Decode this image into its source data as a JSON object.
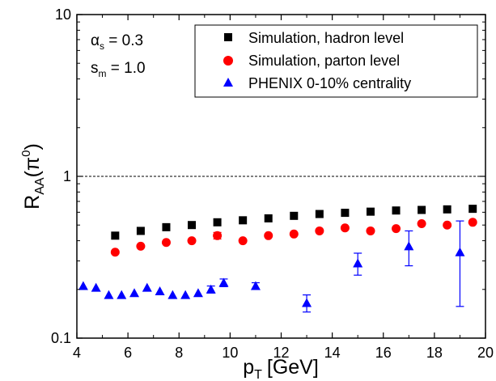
{
  "chart_data": {
    "type": "scatter",
    "xlabel": "p",
    "xlabel_sub": "T",
    "xlabel_unit": "[GeV]",
    "ylabel": "R",
    "ylabel_sub": "AA",
    "ylabel_arg_open": "(π",
    "ylabel_arg_sup": "0",
    "ylabel_arg_close": ")",
    "xlim": [
      4,
      20
    ],
    "ylim": [
      0.1,
      10
    ],
    "yscale": "log",
    "xticks": [
      "4",
      "6",
      "8",
      "10",
      "12",
      "14",
      "16",
      "18",
      "20"
    ],
    "yticks": [
      "0.1",
      "1",
      "10"
    ],
    "reference_line": {
      "y": 1,
      "style": "dashed"
    },
    "legend_position": "top-right",
    "params": [
      {
        "sym": "α",
        "sub": "s",
        "value": " = 0.3"
      },
      {
        "sym": "s",
        "sub": "m",
        "value": " = 1.0"
      }
    ],
    "series": [
      {
        "name": "Simulation, hadron level",
        "marker": "square",
        "color": "#000000",
        "points": [
          {
            "x": 5.5,
            "y": 0.43
          },
          {
            "x": 6.5,
            "y": 0.46
          },
          {
            "x": 7.5,
            "y": 0.485
          },
          {
            "x": 8.5,
            "y": 0.5
          },
          {
            "x": 9.5,
            "y": 0.52
          },
          {
            "x": 10.5,
            "y": 0.535
          },
          {
            "x": 11.5,
            "y": 0.55
          },
          {
            "x": 12.5,
            "y": 0.57
          },
          {
            "x": 13.5,
            "y": 0.585
          },
          {
            "x": 14.5,
            "y": 0.595
          },
          {
            "x": 15.5,
            "y": 0.605
          },
          {
            "x": 16.5,
            "y": 0.615
          },
          {
            "x": 17.5,
            "y": 0.62
          },
          {
            "x": 18.5,
            "y": 0.625
          },
          {
            "x": 19.5,
            "y": 0.63
          }
        ]
      },
      {
        "name": "Simulation, parton level",
        "marker": "circle",
        "color": "#ff0000",
        "points": [
          {
            "x": 5.5,
            "y": 0.34
          },
          {
            "x": 6.5,
            "y": 0.37
          },
          {
            "x": 7.5,
            "y": 0.39
          },
          {
            "x": 8.5,
            "y": 0.4
          },
          {
            "x": 9.5,
            "y": 0.43,
            "yerr": 0.02
          },
          {
            "x": 10.5,
            "y": 0.4
          },
          {
            "x": 11.5,
            "y": 0.43
          },
          {
            "x": 12.5,
            "y": 0.44
          },
          {
            "x": 13.5,
            "y": 0.46
          },
          {
            "x": 14.5,
            "y": 0.48
          },
          {
            "x": 15.5,
            "y": 0.46
          },
          {
            "x": 16.5,
            "y": 0.475
          },
          {
            "x": 17.5,
            "y": 0.51
          },
          {
            "x": 18.5,
            "y": 0.5
          },
          {
            "x": 19.5,
            "y": 0.52
          }
        ]
      },
      {
        "name": "PHENIX 0-10% centrality",
        "marker": "triangle",
        "color": "#0000ff",
        "points": [
          {
            "x": 4.25,
            "y": 0.21
          },
          {
            "x": 4.75,
            "y": 0.205
          },
          {
            "x": 5.25,
            "y": 0.185
          },
          {
            "x": 5.75,
            "y": 0.185
          },
          {
            "x": 6.25,
            "y": 0.19
          },
          {
            "x": 6.75,
            "y": 0.205
          },
          {
            "x": 7.25,
            "y": 0.195
          },
          {
            "x": 7.75,
            "y": 0.185
          },
          {
            "x": 8.25,
            "y": 0.185
          },
          {
            "x": 8.75,
            "y": 0.19
          },
          {
            "x": 9.25,
            "y": 0.2,
            "yerr": 0.01
          },
          {
            "x": 9.75,
            "y": 0.22,
            "yerr": 0.012
          },
          {
            "x": 11.0,
            "y": 0.21,
            "yerr": 0.01
          },
          {
            "x": 13.0,
            "y": 0.165,
            "yerr": 0.02
          },
          {
            "x": 15.0,
            "y": 0.29,
            "yerr": 0.045
          },
          {
            "x": 17.0,
            "y": 0.37,
            "yerr": 0.09
          },
          {
            "x": 19.0,
            "y": 0.34,
            "ylow": 0.157,
            "yhigh": 0.53
          }
        ]
      }
    ]
  }
}
